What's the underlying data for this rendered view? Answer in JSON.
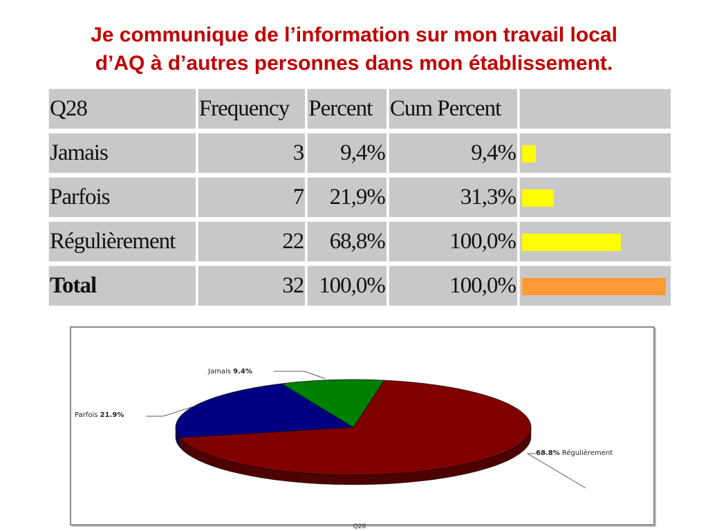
{
  "title": {
    "line1": "Je communique de l’information sur mon travail local",
    "line2": "d’AQ à d’autres personnes dans mon établissement."
  },
  "table": {
    "headers": [
      "Q28",
      "Frequency",
      "Percent",
      "Cum Percent",
      ""
    ],
    "rows": [
      {
        "label": "Jamais",
        "frequency": "3",
        "percent": "9,4%",
        "cum_percent": "9,4%",
        "bar_fraction": 0.094
      },
      {
        "label": "Parfois",
        "frequency": "7",
        "percent": "21,9%",
        "cum_percent": "31,3%",
        "bar_fraction": 0.219
      },
      {
        "label": "Régulièrement",
        "frequency": "22",
        "percent": "68,8%",
        "cum_percent": "100,0%",
        "bar_fraction": 0.688
      },
      {
        "label": "Total",
        "frequency": "32",
        "percent": "100,0%",
        "cum_percent": "100,0%",
        "bar_fraction": 1.0
      }
    ],
    "colors": {
      "bar": "#ffff00",
      "total_bar": "#ff9933"
    }
  },
  "chart_data": {
    "type": "pie",
    "title": "",
    "caption": "Q28",
    "slices": [
      {
        "name": "Jamais",
        "value": 9.4,
        "value_label": "9.4%",
        "color": "#008000"
      },
      {
        "name": "Parfois",
        "value": 21.9,
        "value_label": "21.9%",
        "color": "#000080"
      },
      {
        "name": "Régulièrement",
        "value": 68.8,
        "value_label": "68.8%",
        "color": "#800000"
      }
    ],
    "style": "3d"
  }
}
